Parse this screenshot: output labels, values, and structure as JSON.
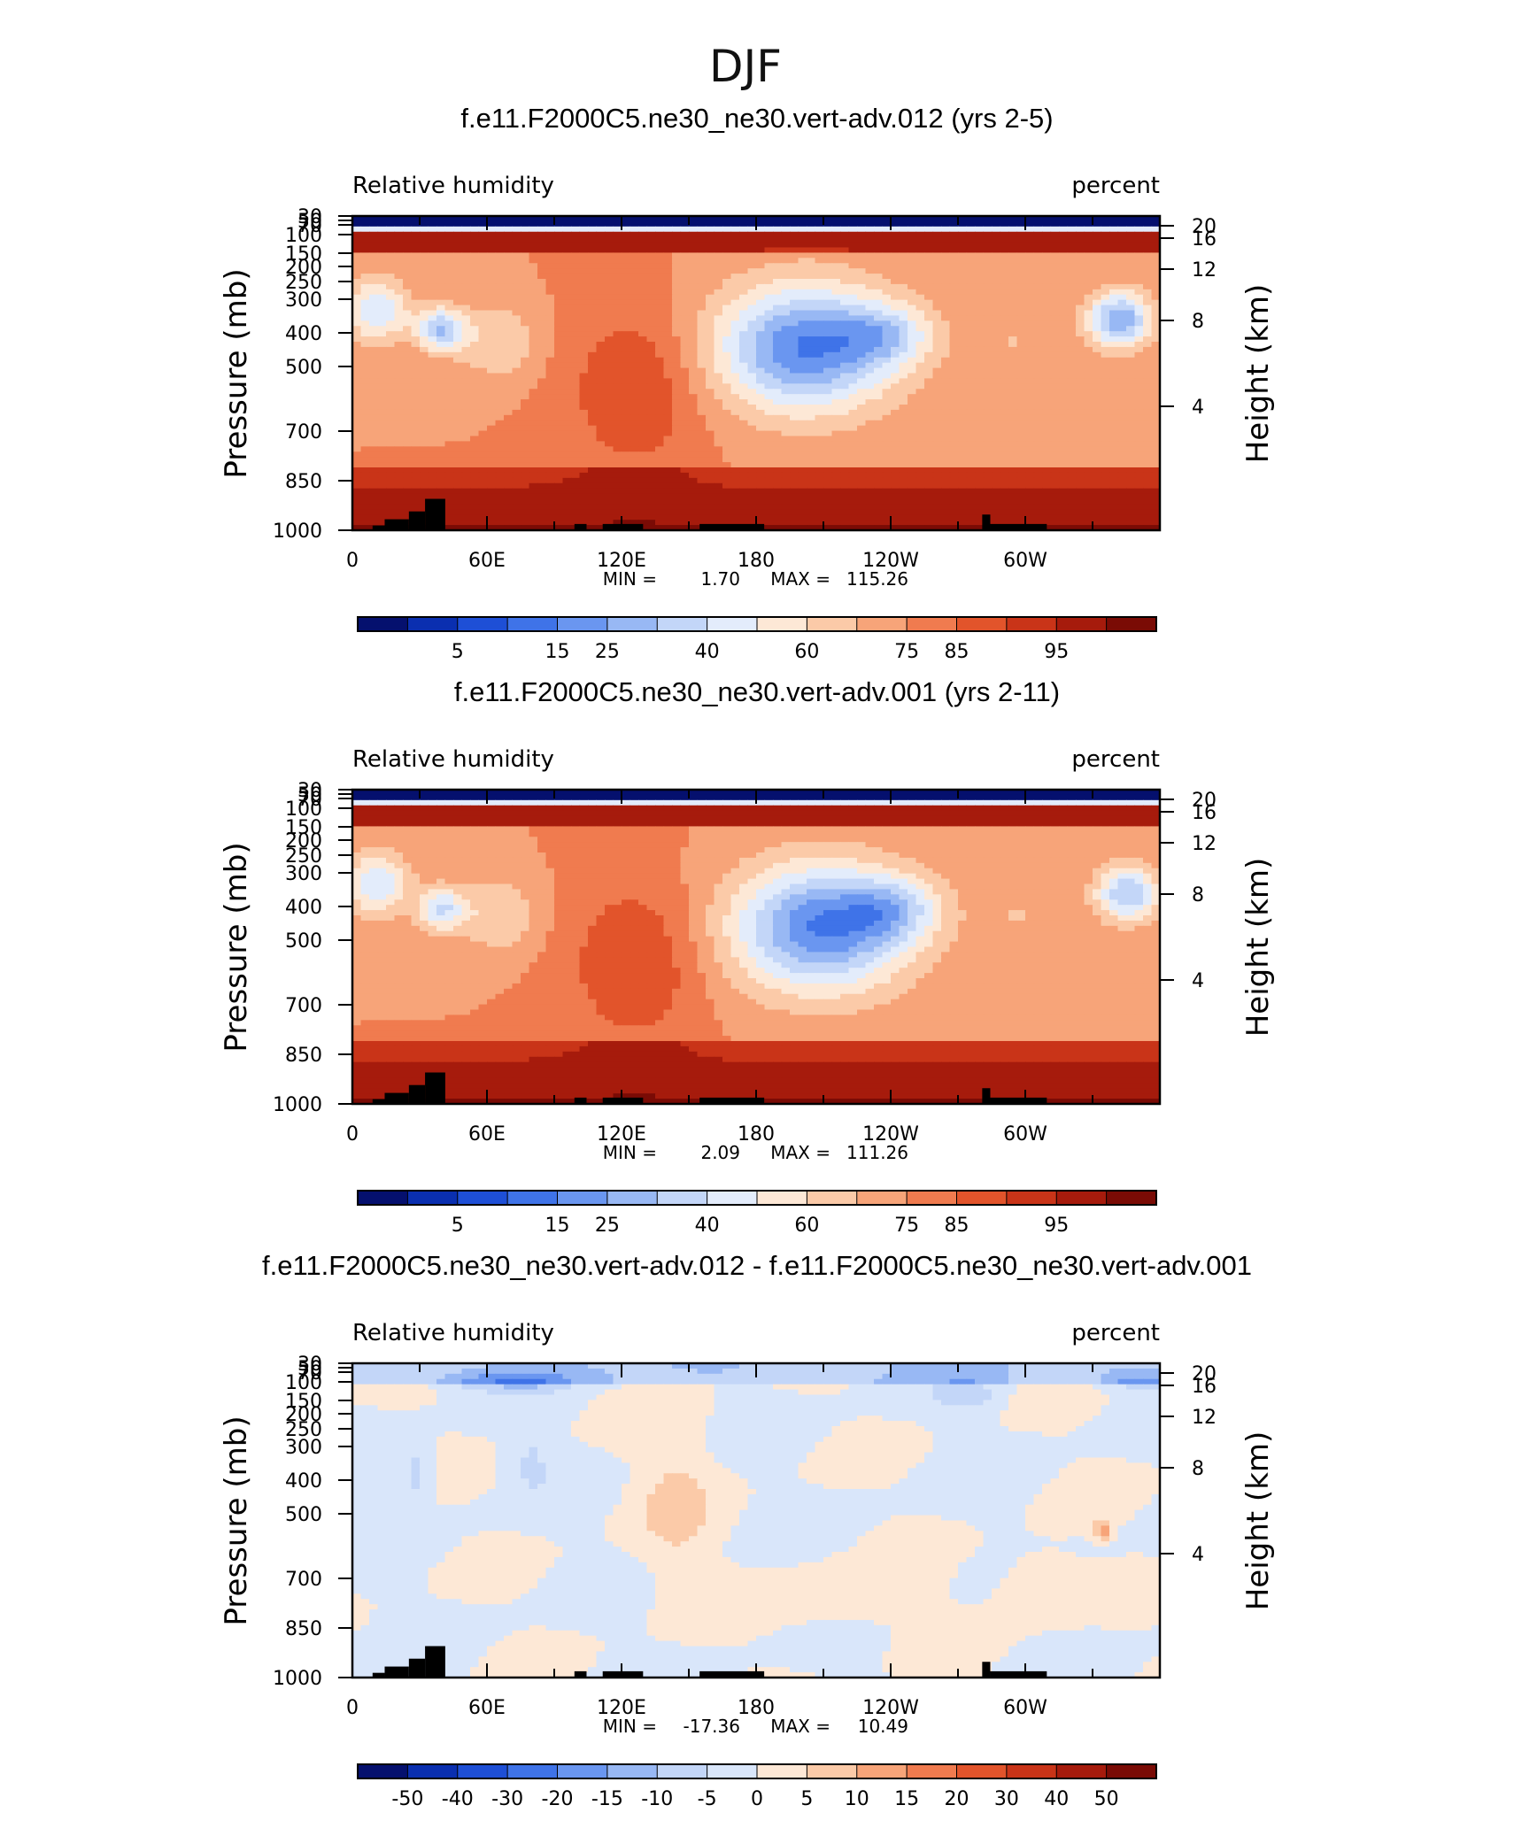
{
  "figure_title": "DJF",
  "chart_data": [
    {
      "type": "heatmap",
      "title": "f.e11.F2000C5.ne30_ne30.vert-adv.012 (yrs 2-5)",
      "left_label": "Relative humidity",
      "right_label": "percent",
      "ylabel": "Pressure (mb)",
      "y2label": "Height (km)",
      "x_ticks": [
        "0",
        "60E",
        "120E",
        "180",
        "120W",
        "60W"
      ],
      "y_ticks": [
        "30",
        "50",
        "70",
        "100",
        "150",
        "200",
        "250",
        "300",
        "400",
        "500",
        "700",
        "850",
        "1000"
      ],
      "y2_ticks": [
        "20",
        "16",
        "12",
        "8",
        "4"
      ],
      "min_label": "MIN =",
      "min_value": "1.70",
      "max_label": "MAX =",
      "max_value": "115.26",
      "min": 1.7,
      "max": 115.26,
      "colorbar_ticks": [
        "5",
        "15",
        "25",
        "40",
        "60",
        "75",
        "85",
        "95"
      ],
      "colorbar_colors": [
        "#05106e",
        "#0a2fb0",
        "#1e4fd6",
        "#3f73e8",
        "#6a96f0",
        "#98b8f4",
        "#c3d6f8",
        "#e3ecfb",
        "#fde8d6",
        "#fbcaa8",
        "#f7a479",
        "#f07b4f",
        "#e2542b",
        "#c93418",
        "#a61b0c",
        "#7a0b05"
      ]
    },
    {
      "type": "heatmap",
      "title": "f.e11.F2000C5.ne30_ne30.vert-adv.001 (yrs 2-11)",
      "left_label": "Relative humidity",
      "right_label": "percent",
      "ylabel": "Pressure (mb)",
      "y2label": "Height (km)",
      "x_ticks": [
        "0",
        "60E",
        "120E",
        "180",
        "120W",
        "60W"
      ],
      "y_ticks": [
        "30",
        "50",
        "70",
        "100",
        "150",
        "200",
        "250",
        "300",
        "400",
        "500",
        "700",
        "850",
        "1000"
      ],
      "y2_ticks": [
        "20",
        "16",
        "12",
        "8",
        "4"
      ],
      "min_label": "MIN =",
      "min_value": "2.09",
      "max_label": "MAX =",
      "max_value": "111.26",
      "min": 2.09,
      "max": 111.26,
      "colorbar_ticks": [
        "5",
        "15",
        "25",
        "40",
        "60",
        "75",
        "85",
        "95"
      ],
      "colorbar_colors": [
        "#05106e",
        "#0a2fb0",
        "#1e4fd6",
        "#3f73e8",
        "#6a96f0",
        "#98b8f4",
        "#c3d6f8",
        "#e3ecfb",
        "#fde8d6",
        "#fbcaa8",
        "#f7a479",
        "#f07b4f",
        "#e2542b",
        "#c93418",
        "#a61b0c",
        "#7a0b05"
      ]
    },
    {
      "type": "heatmap",
      "title": "f.e11.F2000C5.ne30_ne30.vert-adv.012 - f.e11.F2000C5.ne30_ne30.vert-adv.001",
      "left_label": "Relative humidity",
      "right_label": "percent",
      "ylabel": "Pressure (mb)",
      "y2label": "Height (km)",
      "x_ticks": [
        "0",
        "60E",
        "120E",
        "180",
        "120W",
        "60W"
      ],
      "y_ticks": [
        "30",
        "50",
        "70",
        "100",
        "150",
        "200",
        "250",
        "300",
        "400",
        "500",
        "700",
        "850",
        "1000"
      ],
      "y2_ticks": [
        "20",
        "16",
        "12",
        "8",
        "4"
      ],
      "min_label": "MIN =",
      "min_value": "-17.36",
      "max_label": "MAX =",
      "max_value": "10.49",
      "min": -17.36,
      "max": 10.49,
      "colorbar_ticks": [
        "-50",
        "-40",
        "-30",
        "-20",
        "-15",
        "-10",
        "-5",
        "0",
        "5",
        "10",
        "15",
        "20",
        "30",
        "40",
        "50"
      ],
      "colorbar_colors": [
        "#05106e",
        "#0a2fb0",
        "#1e4fd6",
        "#3f73e8",
        "#6a96f0",
        "#98b8f4",
        "#c3d6f8",
        "#d9e6fa",
        "#fde8d6",
        "#fbcaa8",
        "#f7a479",
        "#f07b4f",
        "#e2542b",
        "#c93418",
        "#a61b0c",
        "#7a0b05"
      ]
    }
  ]
}
